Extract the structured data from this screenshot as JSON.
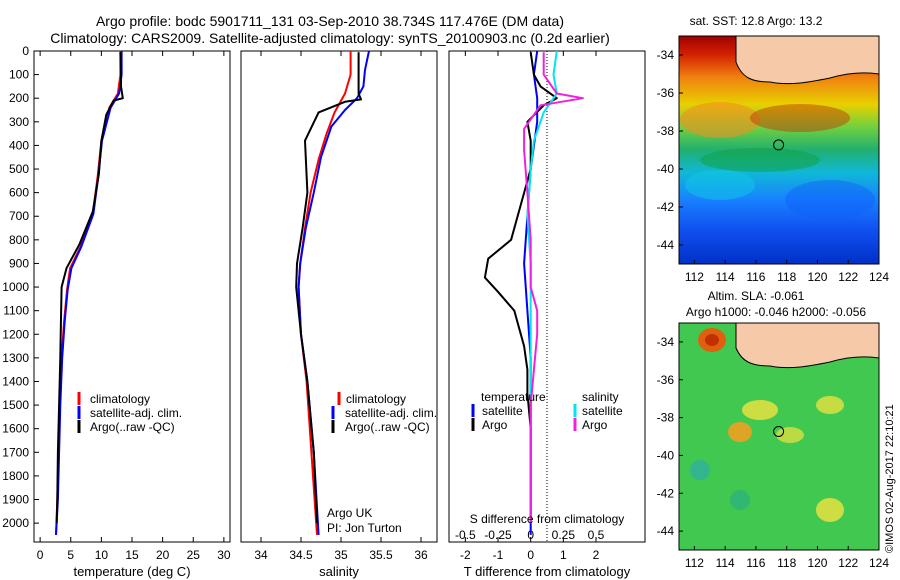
{
  "header": {
    "line1": "Argo profile: bodc 5901711_131 03-Sep-2010 38.734S 117.476E (DM data)",
    "line2": "Climatology: CARS2009. Satellite-adjusted climatology: synTS_20100903.nc (0.2d earlier)"
  },
  "colors": {
    "climatology": "#ff0000",
    "satellite": "#0000ff",
    "argo": "#000000",
    "sal_sat": "#00e5ee",
    "sal_argo": "#ee22dd",
    "land": "#f6c9a8"
  },
  "side_text": "©IMOS 02-Aug-2017 22:10:21",
  "chart_data": [
    {
      "type": "line",
      "id": "temperature",
      "xlabel": "temperature (deg C)",
      "ylabel": "",
      "xlim": [
        -1,
        31
      ],
      "ylim": [
        2080,
        0
      ],
      "xticks": [
        0,
        5,
        10,
        15,
        20,
        25,
        30
      ],
      "yticks": [
        0,
        100,
        200,
        300,
        400,
        500,
        600,
        700,
        800,
        900,
        1000,
        1100,
        1200,
        1300,
        1400,
        1500,
        1600,
        1700,
        1800,
        1900,
        2000
      ],
      "legend": {
        "placement": "center-left",
        "entries": [
          "climatology",
          "satellite-adj. clim.",
          "Argo(..raw -QC)"
        ]
      },
      "series": [
        {
          "name": "climatology",
          "color": "#ff0000",
          "points": [
            [
              13.1,
              0
            ],
            [
              13.1,
              100
            ],
            [
              12.7,
              180
            ],
            [
              11.3,
              240
            ],
            [
              10,
              380
            ],
            [
              9.4,
              530
            ],
            [
              8.6,
              690
            ],
            [
              6.6,
              830
            ],
            [
              4.9,
              920
            ],
            [
              4.4,
              1010
            ],
            [
              3.9,
              1150
            ],
            [
              3.5,
              1300
            ],
            [
              3.2,
              1500
            ],
            [
              3,
              1700
            ],
            [
              2.8,
              1900
            ],
            [
              2.6,
              2050
            ]
          ]
        },
        {
          "name": "satellite-adj. clim.",
          "color": "#0000ff",
          "points": [
            [
              13.3,
              0
            ],
            [
              13.3,
              100
            ],
            [
              12.9,
              180
            ],
            [
              11.5,
              240
            ],
            [
              10.1,
              380
            ],
            [
              9.5,
              530
            ],
            [
              8.7,
              690
            ],
            [
              6.7,
              830
            ],
            [
              5.1,
              920
            ],
            [
              4.5,
              1010
            ],
            [
              4,
              1150
            ],
            [
              3.6,
              1300
            ],
            [
              3.3,
              1500
            ],
            [
              3.1,
              1700
            ],
            [
              2.9,
              1900
            ],
            [
              2.6,
              2050
            ]
          ]
        },
        {
          "name": "Argo(..raw -QC)",
          "color": "#000000",
          "points": [
            [
              13.1,
              5
            ],
            [
              13.2,
              100
            ],
            [
              13.2,
              150
            ],
            [
              13.5,
              200
            ],
            [
              12,
              210
            ],
            [
              10.8,
              270
            ],
            [
              10,
              380
            ],
            [
              9.6,
              520
            ],
            [
              8.6,
              680
            ],
            [
              6.4,
              820
            ],
            [
              4.3,
              920
            ],
            [
              3.5,
              1000
            ],
            [
              3.4,
              1130
            ],
            [
              3.3,
              1300
            ],
            [
              3.1,
              1500
            ],
            [
              2.9,
              1700
            ],
            [
              2.8,
              1900
            ],
            [
              2.7,
              2000
            ]
          ]
        }
      ]
    },
    {
      "type": "line",
      "id": "salinity",
      "xlabel": "salinity",
      "ylabel": "",
      "xlim": [
        33.75,
        36.2
      ],
      "ylim": [
        2080,
        0
      ],
      "xticks": [
        34,
        34.5,
        35,
        35.5,
        36
      ],
      "legend": {
        "placement": "center-left",
        "entries": [
          "climatology",
          "satellite-adj. clim.",
          "Argo(..raw -QC)"
        ]
      },
      "annotation": [
        "Argo UK",
        "PI: Jon Turton"
      ],
      "series": [
        {
          "name": "climatology",
          "color": "#ff0000",
          "points": [
            [
              35.12,
              0
            ],
            [
              35.12,
              100
            ],
            [
              35.05,
              180
            ],
            [
              34.92,
              260
            ],
            [
              34.82,
              350
            ],
            [
              34.72,
              460
            ],
            [
              34.62,
              600
            ],
            [
              34.55,
              750
            ],
            [
              34.49,
              900
            ],
            [
              34.47,
              1000
            ],
            [
              34.5,
              1200
            ],
            [
              34.57,
              1400
            ],
            [
              34.63,
              1700
            ],
            [
              34.7,
              2050
            ]
          ]
        },
        {
          "name": "satellite-adj. clim.",
          "color": "#0000ff",
          "points": [
            [
              35.35,
              0
            ],
            [
              35.3,
              80
            ],
            [
              35.28,
              150
            ],
            [
              35.2,
              200
            ],
            [
              35.05,
              250
            ],
            [
              34.88,
              320
            ],
            [
              34.75,
              450
            ],
            [
              34.66,
              600
            ],
            [
              34.56,
              750
            ],
            [
              34.49,
              900
            ],
            [
              34.47,
              1000
            ],
            [
              34.5,
              1200
            ],
            [
              34.58,
              1400
            ],
            [
              34.66,
              1700
            ],
            [
              34.72,
              2050
            ]
          ]
        },
        {
          "name": "Argo(..raw -QC)",
          "color": "#000000",
          "points": [
            [
              35.22,
              5
            ],
            [
              35.22,
              100
            ],
            [
              35.22,
              180
            ],
            [
              35.25,
              205
            ],
            [
              35.05,
              215
            ],
            [
              34.72,
              260
            ],
            [
              34.55,
              380
            ],
            [
              34.58,
              600
            ],
            [
              34.52,
              750
            ],
            [
              34.45,
              900
            ],
            [
              34.44,
              1000
            ],
            [
              34.5,
              1200
            ],
            [
              34.58,
              1400
            ],
            [
              34.66,
              1700
            ],
            [
              34.7,
              2000
            ]
          ]
        }
      ]
    },
    {
      "type": "line",
      "id": "difference",
      "xlabel": "T difference from climatology",
      "xlabel_top": "S difference from climatology",
      "xlim": [
        -2.5,
        3.5
      ],
      "ylim": [
        2080,
        0
      ],
      "xticks": [
        -2,
        -1,
        0,
        1,
        2
      ],
      "xticks_top": [
        "-0.5",
        "-0.25",
        "0",
        "0.25",
        "0.5"
      ],
      "xticks_top_pos": [
        -2,
        -1,
        0,
        1,
        2
      ],
      "legend": {
        "placement": "center",
        "groups": [
          {
            "title": "temperature",
            "entries": [
              "satellite",
              "Argo"
            ]
          },
          {
            "title": "salinity",
            "entries": [
              "satellite",
              "Argo"
            ]
          }
        ]
      },
      "series": [
        {
          "name": "T satellite",
          "color": "#0000ff",
          "points": [
            [
              0.2,
              0
            ],
            [
              0.1,
              100
            ],
            [
              0.2,
              200
            ],
            [
              0.2,
              300
            ],
            [
              0,
              500
            ],
            [
              -0.1,
              700
            ],
            [
              -0.2,
              900
            ],
            [
              -0.1,
              1100
            ],
            [
              0,
              1300
            ],
            [
              0,
              1500
            ],
            [
              0,
              1700
            ],
            [
              0,
              1900
            ],
            [
              0,
              2050
            ]
          ]
        },
        {
          "name": "T Argo",
          "color": "#000000",
          "points": [
            [
              0,
              5
            ],
            [
              0.1,
              100
            ],
            [
              0.3,
              150
            ],
            [
              0.8,
              200
            ],
            [
              0.4,
              230
            ],
            [
              -0.1,
              300
            ],
            [
              0,
              380
            ],
            [
              0,
              500
            ],
            [
              -0.3,
              650
            ],
            [
              -0.6,
              800
            ],
            [
              -1.3,
              880
            ],
            [
              -1.4,
              960
            ],
            [
              -1.0,
              1020
            ],
            [
              -0.5,
              1100
            ],
            [
              -0.2,
              1250
            ],
            [
              -0.1,
              1350
            ],
            [
              -0.1,
              1450
            ],
            [
              0,
              1600
            ],
            [
              0,
              1900
            ],
            [
              0,
              2000
            ]
          ]
        },
        {
          "name": "S satellite",
          "color": "#00e5ee",
          "points": [
            [
              0.8,
              0
            ],
            [
              0.7,
              100
            ],
            [
              0.8,
              180
            ],
            [
              0.4,
              260
            ],
            [
              0.1,
              380
            ],
            [
              0,
              500
            ],
            [
              -0.1,
              700
            ],
            [
              0,
              900
            ],
            [
              0,
              1100
            ],
            [
              0,
              1300
            ],
            [
              0,
              1600
            ],
            [
              0,
              2000
            ]
          ]
        },
        {
          "name": "S Argo",
          "color": "#ee22dd",
          "points": [
            [
              0.4,
              5
            ],
            [
              0.4,
              100
            ],
            [
              0.8,
              180
            ],
            [
              1.6,
              200
            ],
            [
              0.3,
              230
            ],
            [
              -0.2,
              330
            ],
            [
              -0.2,
              420
            ],
            [
              -0.1,
              600
            ],
            [
              0,
              800
            ],
            [
              0,
              1000
            ],
            [
              0.2,
              1100
            ],
            [
              0.2,
              1200
            ],
            [
              0.1,
              1350
            ],
            [
              0,
              1500
            ],
            [
              0,
              1700
            ],
            [
              0,
              2000
            ]
          ]
        }
      ]
    },
    {
      "type": "heatmap",
      "id": "sst-map",
      "title": "sat. SST: 12.8  Argo: 13.2",
      "xlim": [
        111,
        124
      ],
      "ylim": [
        -45,
        -33
      ],
      "xticks": [
        112,
        114,
        116,
        118,
        120,
        122,
        124
      ],
      "yticks": [
        -34,
        -36,
        -38,
        -40,
        -42,
        -44
      ],
      "argo_position": [
        117.476,
        -38.734
      ]
    },
    {
      "type": "heatmap",
      "id": "sla-map",
      "title": "Altim. SLA: -0.061",
      "subtitle": "Argo h1000: -0.046 h2000: -0.056",
      "xlim": [
        111,
        124
      ],
      "ylim": [
        -45,
        -33
      ],
      "xticks": [
        112,
        114,
        116,
        118,
        120,
        122,
        124
      ],
      "yticks": [
        -34,
        -36,
        -38,
        -40,
        -42,
        -44
      ],
      "argo_position": [
        117.476,
        -38.734
      ]
    }
  ]
}
